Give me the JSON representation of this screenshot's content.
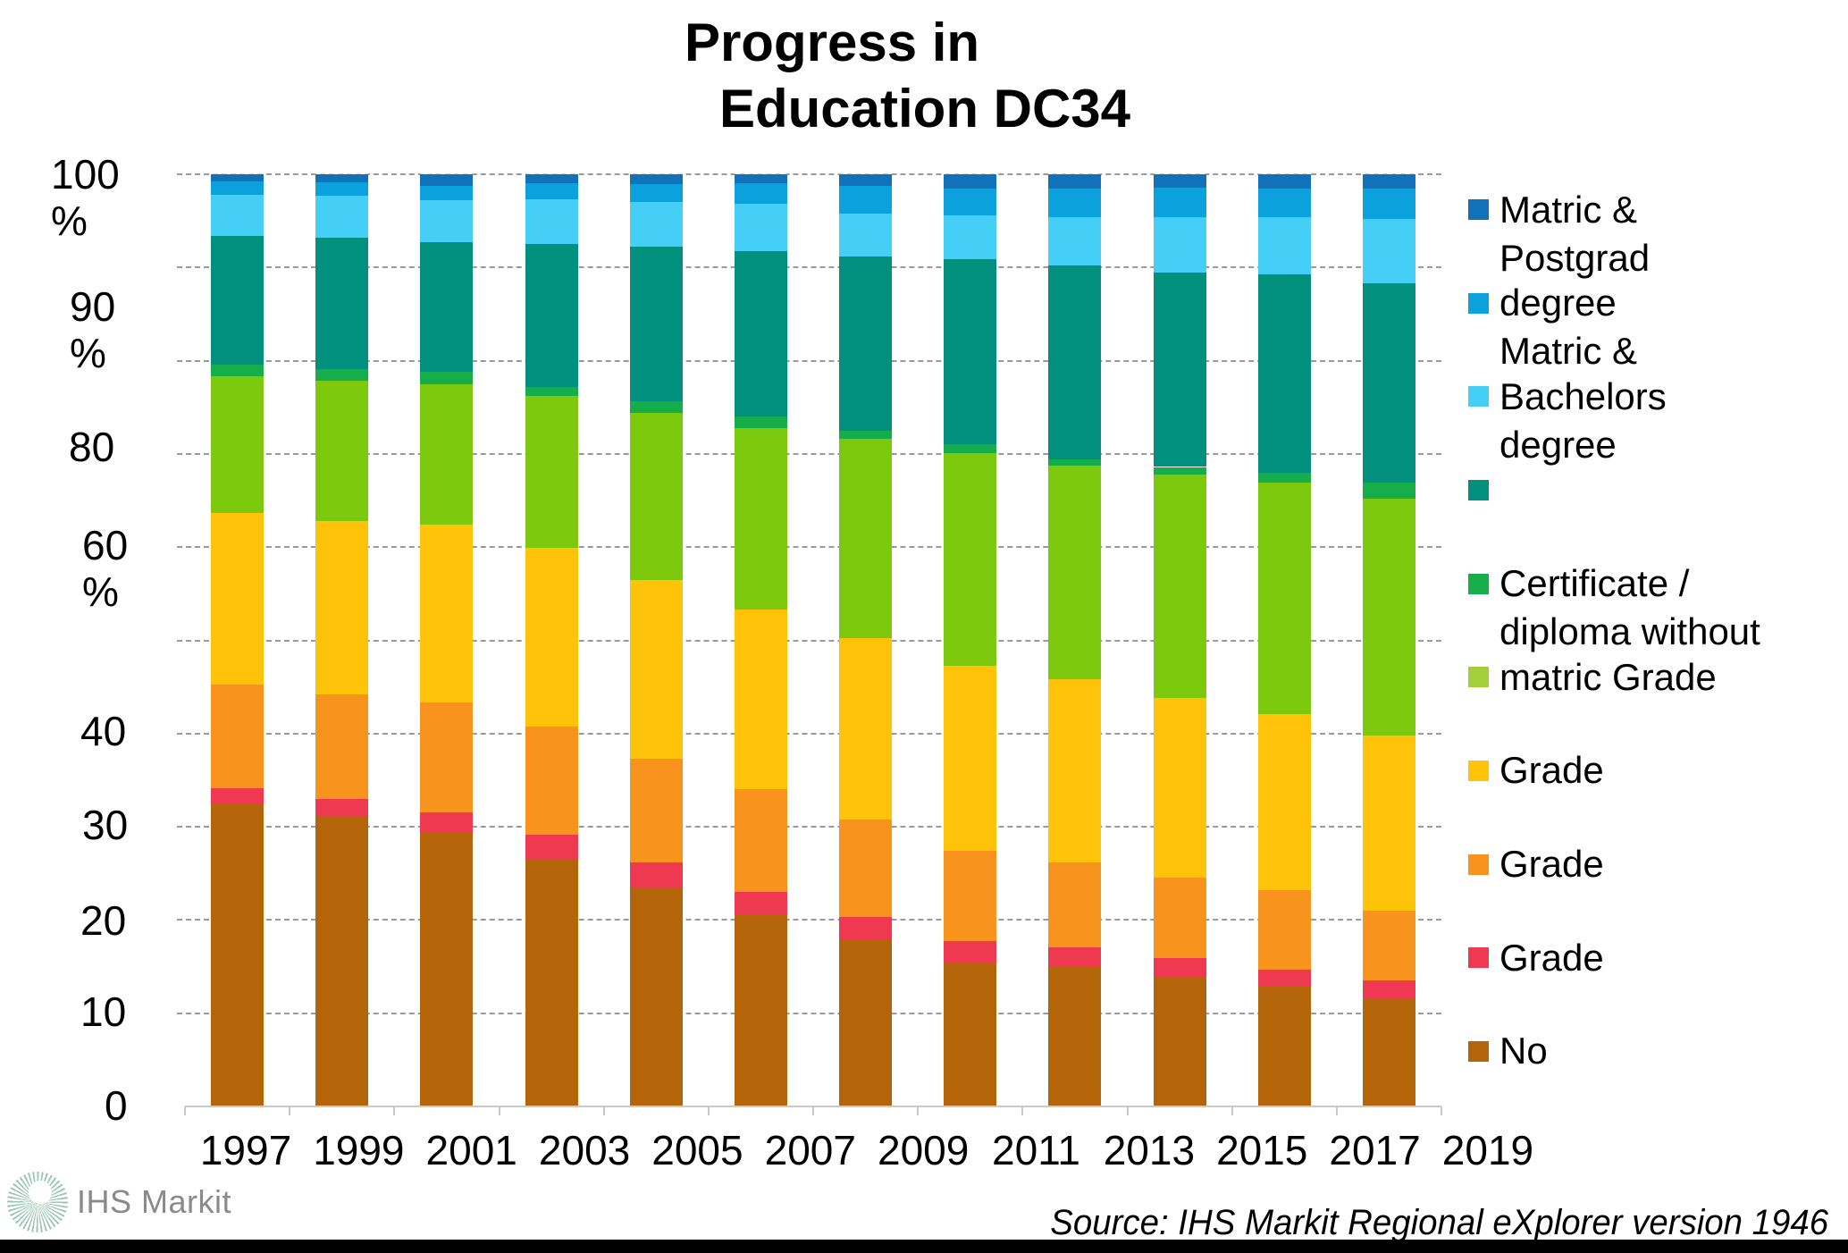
{
  "title": {
    "line1": "Progress in",
    "line2": "Education DC34"
  },
  "source_note": "Source: IHS Markit Regional eXplorer version 1946",
  "branding": {
    "logo_text": "IHS Markit"
  },
  "chart_data": {
    "type": "bar",
    "stacked": true,
    "unit": "%",
    "title": "Progress in Education DC34",
    "ylim": [
      0,
      100
    ],
    "grid": "horizontal-dashed",
    "legend_position": "right",
    "categories": [
      "1997",
      "1999",
      "2001",
      "2003",
      "2005",
      "2007",
      "2009",
      "2011",
      "2013",
      "2015",
      "2017",
      "2019"
    ],
    "y_axis_labels": [
      {
        "lines": [
          "100",
          "%"
        ]
      },
      {
        "lines": [
          "90",
          "%"
        ]
      },
      {
        "lines": [
          "80"
        ]
      },
      {
        "lines": [
          "60",
          "%"
        ]
      },
      {
        "lines": [
          "40"
        ]
      },
      {
        "lines": [
          "30"
        ]
      },
      {
        "lines": [
          "20"
        ]
      },
      {
        "lines": [
          "10"
        ]
      },
      {
        "lines": [
          "0"
        ]
      }
    ],
    "series": [
      {
        "name": "no_schooling",
        "legend_label": "No",
        "color": "#B4650A",
        "values": [
          32.5,
          31.2,
          29.4,
          26.6,
          23.4,
          20.5,
          17.9,
          15.4,
          15.1,
          13.8,
          12.8,
          11.6
        ]
      },
      {
        "name": "grade-red",
        "legend_label": "Grade",
        "color": "#EE3950",
        "values": [
          1.6,
          1.8,
          2.1,
          2.5,
          2.8,
          2.5,
          2.4,
          2.3,
          2.0,
          2.1,
          1.9,
          1.9
        ]
      },
      {
        "name": "grade-orange",
        "legend_label": "Grade",
        "color": "#F8941D",
        "values": [
          11.2,
          11.2,
          11.8,
          11.6,
          11.1,
          11.0,
          10.5,
          9.7,
          9.1,
          8.6,
          8.5,
          7.5
        ]
      },
      {
        "name": "grade-yellow",
        "legend_label": "Grade",
        "color": "#FFC30A",
        "values": [
          18.4,
          18.6,
          19.1,
          19.2,
          19.2,
          19.3,
          19.4,
          19.9,
          19.6,
          19.3,
          18.9,
          18.8
        ]
      },
      {
        "name": "matric_grade",
        "legend_label": "matric Grade",
        "color": "#7DC90D",
        "values": [
          14.6,
          15.1,
          15.1,
          16.3,
          17.9,
          19.5,
          21.4,
          22.8,
          22.9,
          24.0,
          24.8,
          25.4
        ]
      },
      {
        "name": "certificate_diploma_without_matric",
        "legend_label": "Certificate / diploma without",
        "color": "#16AD4B",
        "values": [
          1.3,
          1.2,
          1.3,
          1.0,
          1.2,
          1.2,
          0.9,
          0.9,
          0.7,
          0.8,
          1.1,
          1.7
        ]
      },
      {
        "name": "teal-unlabeled",
        "legend_label": "",
        "color": "#00907D",
        "values": [
          13.8,
          14.1,
          13.9,
          15.3,
          16.6,
          17.8,
          18.7,
          19.9,
          20.8,
          20.9,
          21.3,
          21.4
        ]
      },
      {
        "name": "matric_bachelors_degree",
        "legend_label": "Bachelors degree",
        "color": "#45CFF7",
        "values": [
          4.4,
          4.5,
          4.5,
          4.8,
          4.8,
          5.0,
          4.6,
          4.7,
          5.2,
          5.9,
          6.1,
          6.9
        ]
      },
      {
        "name": "degree-matric",
        "legend_label": "degree Matric &",
        "color": "#0AA1DC",
        "values": [
          1.4,
          1.4,
          1.6,
          1.7,
          1.9,
          2.2,
          3.0,
          2.9,
          3.1,
          3.2,
          3.1,
          3.3
        ]
      },
      {
        "name": "matric_postgrad_degree",
        "legend_label": "Matric & Postgrad",
        "color": "#1272B9",
        "values": [
          0.8,
          0.9,
          1.2,
          1.0,
          1.1,
          1.0,
          1.2,
          1.5,
          1.5,
          1.4,
          1.5,
          1.5
        ]
      }
    ]
  },
  "legend": {
    "items": [
      {
        "color": "#1272B9",
        "lines": [
          "Matric &",
          "Postgrad"
        ]
      },
      {
        "color": "#0AA1DC",
        "lines": [
          "degree",
          "Matric &"
        ]
      },
      {
        "color": "#45CFF7",
        "lines": [
          "Bachelors",
          "degree"
        ]
      },
      {
        "color": "#00907D",
        "lines": []
      },
      {
        "color": "#16AD4B",
        "lines": [
          "Certificate /",
          "diploma without"
        ]
      },
      {
        "color": "#A5CE3B",
        "lines": [
          "matric Grade"
        ]
      },
      {
        "color": "#FFC30A",
        "lines": [
          "Grade"
        ]
      },
      {
        "color": "#F8941D",
        "lines": [
          "Grade"
        ]
      },
      {
        "color": "#EE3950",
        "lines": [
          "Grade"
        ]
      },
      {
        "color": "#B4650A",
        "lines": [
          "No"
        ]
      }
    ]
  }
}
